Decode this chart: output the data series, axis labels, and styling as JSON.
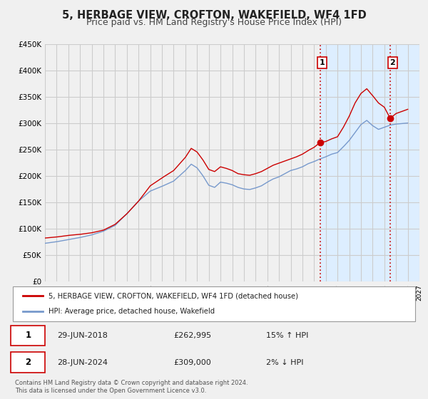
{
  "title": "5, HERBAGE VIEW, CROFTON, WAKEFIELD, WF4 1FD",
  "subtitle": "Price paid vs. HM Land Registry's House Price Index (HPI)",
  "ylim": [
    0,
    450000
  ],
  "xlim_start": 1995,
  "xlim_end": 2027,
  "yticks": [
    0,
    50000,
    100000,
    150000,
    200000,
    250000,
    300000,
    350000,
    400000,
    450000
  ],
  "ytick_labels": [
    "£0",
    "£50K",
    "£100K",
    "£150K",
    "£200K",
    "£250K",
    "£300K",
    "£350K",
    "£400K",
    "£450K"
  ],
  "line1_color": "#cc0000",
  "line2_color": "#7799cc",
  "marker_color": "#cc0000",
  "vline1_x": 2018.5,
  "vline2_x": 2024.5,
  "vline_color": "#cc0000",
  "shade_color": "#ddeeff",
  "legend_label1": "5, HERBAGE VIEW, CROFTON, WAKEFIELD, WF4 1FD (detached house)",
  "legend_label2": "HPI: Average price, detached house, Wakefield",
  "point1_date": "29-JUN-2018",
  "point1_price": "£262,995",
  "point1_hpi": "15% ↑ HPI",
  "point1_x": 2018.5,
  "point1_y": 262995,
  "point2_date": "28-JUN-2024",
  "point2_price": "£309,000",
  "point2_hpi": "2% ↓ HPI",
  "point2_x": 2024.5,
  "point2_y": 309000,
  "footnote": "Contains HM Land Registry data © Crown copyright and database right 2024.\nThis data is licensed under the Open Government Licence v3.0.",
  "background_color": "#f0f0f0",
  "plot_bg_color": "#f0f0f0",
  "grid_color": "#cccccc",
  "title_fontsize": 10.5,
  "subtitle_fontsize": 9
}
